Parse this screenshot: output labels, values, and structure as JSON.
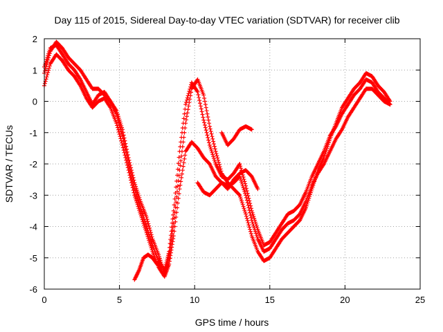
{
  "chart_data": {
    "type": "scatter",
    "title": "Day 115 of 2015, Sidereal Day-to-day VTEC variation (SDTVAR) for receiver clib",
    "xlabel": "GPS time / hours",
    "ylabel": "SDTVAR / TECUs",
    "xlim": [
      0,
      25
    ],
    "ylim": [
      -6,
      2
    ],
    "xticks": [
      0,
      5,
      10,
      15,
      20,
      25
    ],
    "yticks": [
      -6,
      -5,
      -4,
      -3,
      -2,
      -1,
      0,
      1,
      2
    ],
    "grid": true,
    "marker": "plus",
    "color": "#ff0000",
    "series": [
      {
        "x": [
          0.0,
          0.4,
          0.8,
          1.2,
          1.6,
          2.0,
          2.4,
          2.8,
          3.2,
          3.6,
          4.0,
          4.4,
          4.8,
          5.2,
          5.6,
          6.0,
          6.4,
          6.8,
          7.2,
          7.6,
          8.0,
          8.3,
          8.6,
          9.0,
          9.4,
          9.8,
          10.2,
          10.6,
          11.0,
          11.4,
          11.8,
          12.2,
          12.6,
          13.0,
          13.4,
          13.8,
          14.2,
          14.6,
          15.0,
          15.4,
          15.8,
          16.2,
          16.6,
          17.0,
          17.4,
          17.8,
          18.2,
          18.6,
          19.0,
          19.4,
          19.8,
          20.2,
          20.6,
          21.0,
          21.4,
          21.8,
          22.2,
          22.6,
          23.0
        ],
        "values": [
          0.9,
          1.6,
          1.9,
          1.7,
          1.4,
          1.2,
          1.0,
          0.7,
          0.4,
          0.4,
          0.2,
          0.0,
          -0.3,
          -0.9,
          -1.8,
          -2.6,
          -3.2,
          -3.7,
          -4.4,
          -4.9,
          -5.5,
          -5.0,
          -3.9,
          -2.2,
          -0.7,
          0.4,
          0.7,
          0.2,
          -0.8,
          -1.6,
          -2.3,
          -2.6,
          -2.8,
          -3.0,
          -3.6,
          -4.3,
          -4.8,
          -5.1,
          -5.0,
          -4.7,
          -4.4,
          -4.2,
          -4.0,
          -3.8,
          -3.4,
          -2.8,
          -2.2,
          -1.8,
          -1.2,
          -0.7,
          -0.2,
          0.1,
          0.4,
          0.6,
          0.9,
          0.8,
          0.5,
          0.3,
          0.0
        ]
      },
      {
        "x": [
          0.0,
          0.4,
          0.8,
          1.2,
          1.6,
          2.0,
          2.4,
          2.8,
          3.2,
          3.6,
          4.0,
          4.4,
          4.8,
          5.2,
          5.6,
          6.0,
          6.4,
          6.8,
          7.2,
          7.6,
          8.0,
          8.3,
          8.6,
          9.0,
          9.4,
          9.8,
          10.2,
          10.6,
          11.0,
          11.4,
          11.8,
          12.2,
          12.6,
          13.0,
          13.4,
          13.8,
          14.2,
          14.6,
          15.0,
          15.4,
          15.8,
          16.2,
          16.6,
          17.0,
          17.4,
          17.8,
          18.2,
          18.6,
          19.0,
          19.4,
          19.8,
          20.2,
          20.6,
          21.0,
          21.4,
          21.8,
          22.2,
          22.6,
          23.0
        ],
        "values": [
          0.5,
          1.2,
          1.5,
          1.3,
          1.0,
          0.8,
          0.5,
          0.1,
          -0.2,
          0.0,
          0.1,
          -0.2,
          -0.7,
          -1.4,
          -2.2,
          -3.0,
          -3.6,
          -4.2,
          -4.8,
          -5.3,
          -5.6,
          -5.2,
          -4.3,
          -2.8,
          -1.6,
          -1.3,
          -1.5,
          -1.8,
          -2.0,
          -2.4,
          -2.6,
          -2.7,
          -2.6,
          -2.4,
          -3.0,
          -3.8,
          -4.4,
          -4.8,
          -4.7,
          -4.4,
          -4.1,
          -3.9,
          -3.8,
          -3.6,
          -3.2,
          -2.7,
          -2.3,
          -2.0,
          -1.6,
          -1.2,
          -0.9,
          -0.5,
          -0.2,
          0.1,
          0.4,
          0.4,
          0.2,
          0.0,
          -0.1
        ]
      },
      {
        "x": [
          0.0,
          0.4,
          0.8,
          1.2,
          1.6,
          2.0,
          2.4,
          2.8,
          3.2,
          3.6,
          4.0,
          4.4,
          4.8,
          5.2,
          5.6,
          6.0,
          6.4,
          6.8,
          7.2,
          7.6,
          8.0,
          8.3,
          8.6,
          9.0,
          9.4,
          9.8,
          10.2,
          10.6,
          11.0,
          11.4,
          11.8,
          12.2,
          12.6,
          13.0,
          13.4,
          13.8,
          14.2,
          14.6,
          15.0,
          15.4,
          15.8,
          16.2,
          16.6,
          17.0,
          17.4,
          17.8,
          18.2,
          18.6,
          19.0,
          19.4,
          19.8,
          20.2,
          20.6,
          21.0,
          21.4,
          21.8,
          22.2,
          22.6,
          23.0
        ],
        "values": [
          1.1,
          1.7,
          1.8,
          1.5,
          1.2,
          1.0,
          0.7,
          0.3,
          -0.1,
          0.2,
          0.3,
          0.0,
          -0.4,
          -1.1,
          -2.0,
          -2.8,
          -3.4,
          -4.0,
          -4.6,
          -5.1,
          -5.4,
          -4.8,
          -3.5,
          -1.6,
          -0.1,
          0.6,
          0.3,
          -0.6,
          -1.4,
          -2.0,
          -2.4,
          -2.5,
          -2.3,
          -2.0,
          -2.7,
          -3.5,
          -4.1,
          -4.6,
          -4.5,
          -4.2,
          -3.9,
          -3.6,
          -3.5,
          -3.3,
          -2.9,
          -2.4,
          -2.0,
          -1.6,
          -1.1,
          -0.8,
          -0.4,
          -0.1,
          0.2,
          0.4,
          0.7,
          0.6,
          0.3,
          0.1,
          -0.1
        ]
      },
      {
        "x": [
          6.0,
          6.3,
          6.6,
          6.9,
          7.2,
          7.5,
          7.8
        ],
        "values": [
          -5.7,
          -5.4,
          -5.0,
          -4.9,
          -5.0,
          -5.2,
          -5.3
        ]
      },
      {
        "x": [
          10.2,
          10.6,
          11.0,
          11.4,
          11.8,
          12.2,
          12.6,
          13.0,
          13.4,
          13.8,
          14.2
        ],
        "values": [
          -2.6,
          -2.9,
          -3.0,
          -2.8,
          -2.6,
          -2.8,
          -2.5,
          -2.3,
          -2.2,
          -2.4,
          -2.8
        ]
      },
      {
        "x": [
          11.8,
          12.2,
          12.6,
          13.0,
          13.4,
          13.8
        ],
        "values": [
          -1.0,
          -1.4,
          -1.2,
          -0.9,
          -0.8,
          -0.9
        ]
      }
    ]
  }
}
